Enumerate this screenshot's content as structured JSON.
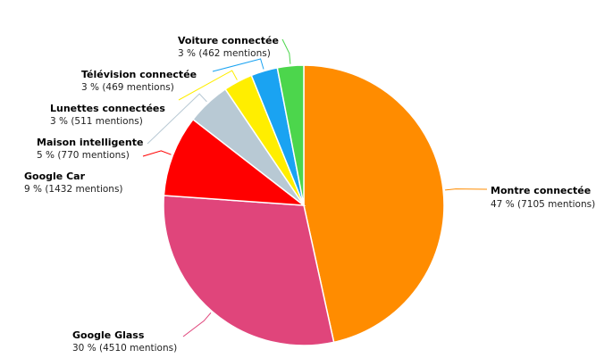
{
  "chart_data": {
    "type": "pie",
    "title": "",
    "categories": [
      "Montre connectée",
      "Google Glass",
      "Google Car",
      "Maison intelligente",
      "Lunettes connectées",
      "Télévision connectée",
      "Voiture connectée"
    ],
    "values": [
      7105,
      4510,
      1432,
      770,
      511,
      469,
      462
    ],
    "labels": [
      {
        "name": "Montre connectée",
        "value": "47 % (7105 mentions)"
      },
      {
        "name": "Google Glass",
        "value": "30 % (4510 mentions)"
      },
      {
        "name": "Google Car",
        "value": "9 % (1432 mentions)"
      },
      {
        "name": "Maison intelligente",
        "value": "5 % (770 mentions)"
      },
      {
        "name": "Lunettes connectées",
        "value": "3 % (511 mentions)"
      },
      {
        "name": "Télévision connectée",
        "value": "3 % (469 mentions)"
      },
      {
        "name": "Voiture connectée",
        "value": "3 % (462 mentions)"
      }
    ],
    "colors": [
      "#ff8c00",
      "#e0457b",
      "#ff0000",
      "#b8c9d4",
      "#ffee00",
      "#1aa3f2",
      "#4cd64c"
    ],
    "legend": "none"
  }
}
